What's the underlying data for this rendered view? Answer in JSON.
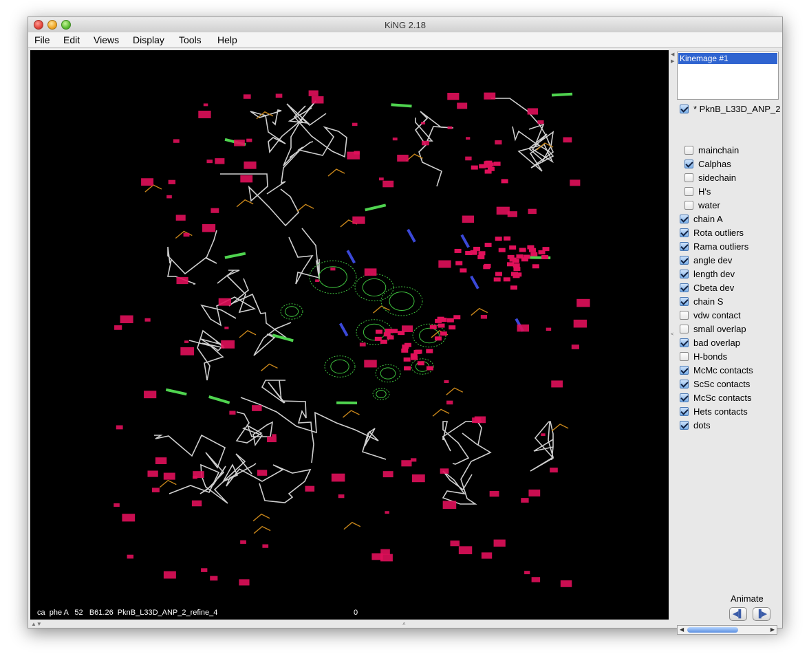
{
  "window": {
    "title": "KiNG 2.18"
  },
  "menu": [
    "File",
    "Edit",
    "Views",
    "Display",
    "Tools",
    "Help"
  ],
  "kinemage_list": {
    "selected": "Kinemage #1"
  },
  "group_header": {
    "label": "* PknB_L33D_ANP_2",
    "checked": true
  },
  "checkboxes": [
    {
      "label": "mainchain",
      "checked": false,
      "indent": true
    },
    {
      "label": "Calphas",
      "checked": true,
      "indent": true
    },
    {
      "label": "sidechain",
      "checked": false,
      "indent": true
    },
    {
      "label": "H's",
      "checked": false,
      "indent": true
    },
    {
      "label": "water",
      "checked": false,
      "indent": true
    },
    {
      "label": "chain A",
      "checked": true,
      "indent": false
    },
    {
      "label": "Rota outliers",
      "checked": true,
      "indent": false
    },
    {
      "label": "Rama outliers",
      "checked": true,
      "indent": false
    },
    {
      "label": "angle dev",
      "checked": true,
      "indent": false
    },
    {
      "label": "length dev",
      "checked": true,
      "indent": false
    },
    {
      "label": "Cbeta dev",
      "checked": true,
      "indent": false
    },
    {
      "label": "chain S",
      "checked": true,
      "indent": false
    },
    {
      "label": "vdw contact",
      "checked": false,
      "indent": false
    },
    {
      "label": "small overlap",
      "checked": false,
      "indent": false
    },
    {
      "label": "bad overlap",
      "checked": true,
      "indent": false
    },
    {
      "label": "H-bonds",
      "checked": false,
      "indent": false
    },
    {
      "label": "McMc contacts",
      "checked": true,
      "indent": false
    },
    {
      "label": "ScSc contacts",
      "checked": true,
      "indent": false
    },
    {
      "label": "McSc contacts",
      "checked": true,
      "indent": false
    },
    {
      "label": "Hets contacts",
      "checked": true,
      "indent": false
    },
    {
      "label": "dots",
      "checked": true,
      "indent": false
    }
  ],
  "animate": {
    "label": "Animate",
    "prev_icon": "step-back-icon",
    "next_icon": "step-forward-icon"
  },
  "status_bar": {
    "text": "ca  phe A   52   B61.26  PknB_L33D_ANP_2_refine_4",
    "count": "0"
  },
  "colors": {
    "ca_trace": "#cfcfcf",
    "sidechain": "#c8861a",
    "clash_dots": "#e0105a",
    "density_mesh": "#3ec23e",
    "outlier_green": "#4fd44f",
    "highlight_blue": "#3a48d8",
    "selection": "#2f64d0"
  }
}
